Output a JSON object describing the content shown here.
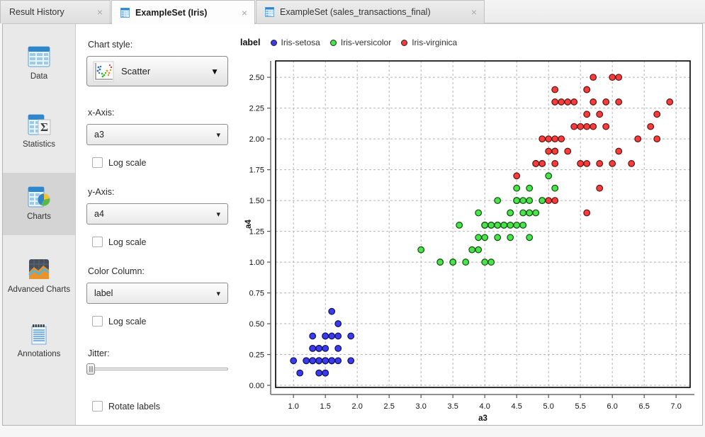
{
  "tabs": [
    {
      "label": "Result History",
      "active": false,
      "has_icon": false
    },
    {
      "label": "ExampleSet (Iris)",
      "active": true,
      "has_icon": true
    },
    {
      "label": "ExampleSet (sales_transactions_final)",
      "active": false,
      "has_icon": true
    }
  ],
  "icons": {
    "close": "×",
    "dropdown_arrow": "▾"
  },
  "sidebar": {
    "items": [
      {
        "label": "Data"
      },
      {
        "label": "Statistics"
      },
      {
        "label": "Charts",
        "selected": true
      },
      {
        "label": "Advanced Charts"
      },
      {
        "label": "Annotations"
      }
    ]
  },
  "controls": {
    "chart_style_label": "Chart style:",
    "chart_style_value": "Scatter",
    "x_axis_label": "x-Axis:",
    "x_axis_value": "a3",
    "y_axis_label": "y-Axis:",
    "y_axis_value": "a4",
    "color_column_label": "Color Column:",
    "color_column_value": "label",
    "log_scale_label": "Log scale",
    "jitter_label": "Jitter:",
    "jitter_value_percent": 0,
    "rotate_labels_label": "Rotate labels"
  },
  "legend": {
    "title": "label",
    "entries": [
      {
        "label": "Iris-setosa",
        "color": "#3a3aee"
      },
      {
        "label": "Iris-versicolor",
        "color": "#49e34a"
      },
      {
        "label": "Iris-virginica",
        "color": "#f83c3c"
      }
    ]
  },
  "chart_data": {
    "type": "scatter",
    "xlabel": "a3",
    "ylabel": "a4",
    "xlim": [
      0.72,
      7.22
    ],
    "ylim": [
      -0.017,
      2.633
    ],
    "grid": true,
    "legend_position": "top-left",
    "x_ticks": [
      1.0,
      1.5,
      2.0,
      2.5,
      3.0,
      3.5,
      4.0,
      4.5,
      5.0,
      5.5,
      6.0,
      6.5,
      7.0
    ],
    "x_tick_labels": [
      "1.0",
      "1.5",
      "2.0",
      "2.5",
      "3.0",
      "3.5",
      "4.0",
      "4.5",
      "5.0",
      "5.5",
      "6.0",
      "6.5",
      "7.0"
    ],
    "y_ticks": [
      0.0,
      0.25,
      0.5,
      0.75,
      1.0,
      1.25,
      1.5,
      1.75,
      2.0,
      2.25,
      2.5
    ],
    "y_tick_labels": [
      "0.00",
      "0.25",
      "0.50",
      "0.75",
      "1.00",
      "1.25",
      "1.50",
      "1.75",
      "2.00",
      "2.25",
      "2.50"
    ],
    "point_radius": 4.3,
    "series": [
      {
        "name": "Iris-setosa",
        "fill": "#3a3aee",
        "stroke": "#11115e",
        "points": [
          [
            1.4,
            0.2
          ],
          [
            1.4,
            0.2
          ],
          [
            1.3,
            0.2
          ],
          [
            1.5,
            0.2
          ],
          [
            1.4,
            0.2
          ],
          [
            1.7,
            0.4
          ],
          [
            1.4,
            0.3
          ],
          [
            1.5,
            0.2
          ],
          [
            1.4,
            0.2
          ],
          [
            1.5,
            0.1
          ],
          [
            1.5,
            0.2
          ],
          [
            1.6,
            0.2
          ],
          [
            1.4,
            0.1
          ],
          [
            1.1,
            0.1
          ],
          [
            1.2,
            0.2
          ],
          [
            1.5,
            0.4
          ],
          [
            1.3,
            0.4
          ],
          [
            1.4,
            0.3
          ],
          [
            1.7,
            0.3
          ],
          [
            1.5,
            0.3
          ],
          [
            1.7,
            0.2
          ],
          [
            1.5,
            0.4
          ],
          [
            1.0,
            0.2
          ],
          [
            1.7,
            0.5
          ],
          [
            1.9,
            0.2
          ],
          [
            1.6,
            0.2
          ],
          [
            1.6,
            0.4
          ],
          [
            1.5,
            0.2
          ],
          [
            1.4,
            0.2
          ],
          [
            1.6,
            0.2
          ],
          [
            1.6,
            0.2
          ],
          [
            1.5,
            0.4
          ],
          [
            1.5,
            0.1
          ],
          [
            1.4,
            0.2
          ],
          [
            1.5,
            0.2
          ],
          [
            1.2,
            0.2
          ],
          [
            1.3,
            0.2
          ],
          [
            1.4,
            0.1
          ],
          [
            1.3,
            0.2
          ],
          [
            1.5,
            0.2
          ],
          [
            1.3,
            0.3
          ],
          [
            1.3,
            0.3
          ],
          [
            1.3,
            0.2
          ],
          [
            1.6,
            0.6
          ],
          [
            1.9,
            0.4
          ],
          [
            1.4,
            0.3
          ],
          [
            1.6,
            0.2
          ],
          [
            1.4,
            0.2
          ],
          [
            1.5,
            0.2
          ],
          [
            1.4,
            0.2
          ]
        ]
      },
      {
        "name": "Iris-versicolor",
        "fill": "#49e34a",
        "stroke": "#0f4d10",
        "points": [
          [
            4.7,
            1.4
          ],
          [
            4.5,
            1.5
          ],
          [
            4.9,
            1.5
          ],
          [
            4.0,
            1.3
          ],
          [
            4.6,
            1.5
          ],
          [
            4.5,
            1.3
          ],
          [
            4.7,
            1.6
          ],
          [
            3.3,
            1.0
          ],
          [
            4.6,
            1.3
          ],
          [
            3.9,
            1.4
          ],
          [
            3.5,
            1.0
          ],
          [
            4.2,
            1.5
          ],
          [
            4.0,
            1.0
          ],
          [
            4.7,
            1.4
          ],
          [
            3.6,
            1.3
          ],
          [
            4.4,
            1.4
          ],
          [
            4.5,
            1.5
          ],
          [
            4.1,
            1.0
          ],
          [
            4.5,
            1.5
          ],
          [
            3.9,
            1.1
          ],
          [
            4.8,
            1.8
          ],
          [
            4.0,
            1.3
          ],
          [
            4.9,
            1.5
          ],
          [
            4.7,
            1.2
          ],
          [
            4.3,
            1.3
          ],
          [
            4.4,
            1.4
          ],
          [
            4.8,
            1.4
          ],
          [
            5.0,
            1.7
          ],
          [
            4.5,
            1.5
          ],
          [
            3.5,
            1.0
          ],
          [
            3.8,
            1.1
          ],
          [
            3.7,
            1.0
          ],
          [
            3.9,
            1.2
          ],
          [
            5.1,
            1.6
          ],
          [
            4.5,
            1.5
          ],
          [
            4.5,
            1.6
          ],
          [
            4.7,
            1.5
          ],
          [
            4.4,
            1.3
          ],
          [
            4.1,
            1.3
          ],
          [
            4.0,
            1.3
          ],
          [
            4.4,
            1.2
          ],
          [
            4.6,
            1.4
          ],
          [
            4.0,
            1.2
          ],
          [
            3.3,
            1.0
          ],
          [
            4.2,
            1.3
          ],
          [
            4.2,
            1.2
          ],
          [
            4.2,
            1.3
          ],
          [
            4.3,
            1.3
          ],
          [
            3.0,
            1.1
          ],
          [
            4.1,
            1.3
          ]
        ]
      },
      {
        "name": "Iris-virginica",
        "fill": "#f83c3c",
        "stroke": "#5e1111",
        "points": [
          [
            6.0,
            2.5
          ],
          [
            5.1,
            1.9
          ],
          [
            5.9,
            2.1
          ],
          [
            5.6,
            1.8
          ],
          [
            5.8,
            2.2
          ],
          [
            6.6,
            2.1
          ],
          [
            4.5,
            1.7
          ],
          [
            6.3,
            1.8
          ],
          [
            5.8,
            1.8
          ],
          [
            6.1,
            2.5
          ],
          [
            5.1,
            2.0
          ],
          [
            5.3,
            1.9
          ],
          [
            5.5,
            2.1
          ],
          [
            5.0,
            2.0
          ],
          [
            5.1,
            2.4
          ],
          [
            5.3,
            2.3
          ],
          [
            5.5,
            1.8
          ],
          [
            6.7,
            2.2
          ],
          [
            6.9,
            2.3
          ],
          [
            5.0,
            1.5
          ],
          [
            5.7,
            2.3
          ],
          [
            4.9,
            2.0
          ],
          [
            6.7,
            2.0
          ],
          [
            4.9,
            1.8
          ],
          [
            5.7,
            2.1
          ],
          [
            6.0,
            1.8
          ],
          [
            4.8,
            1.8
          ],
          [
            4.9,
            1.8
          ],
          [
            5.6,
            2.1
          ],
          [
            5.8,
            1.6
          ],
          [
            6.1,
            1.9
          ],
          [
            6.4,
            2.0
          ],
          [
            5.6,
            2.2
          ],
          [
            5.1,
            1.5
          ],
          [
            5.6,
            1.4
          ],
          [
            6.1,
            2.3
          ],
          [
            5.6,
            2.4
          ],
          [
            5.5,
            1.8
          ],
          [
            4.8,
            1.8
          ],
          [
            5.4,
            2.1
          ],
          [
            5.6,
            2.4
          ],
          [
            5.1,
            2.3
          ],
          [
            5.1,
            1.9
          ],
          [
            5.9,
            2.3
          ],
          [
            5.7,
            2.5
          ],
          [
            5.2,
            2.3
          ],
          [
            5.0,
            1.9
          ],
          [
            5.2,
            2.0
          ],
          [
            5.4,
            2.3
          ],
          [
            5.1,
            1.8
          ]
        ]
      }
    ]
  }
}
